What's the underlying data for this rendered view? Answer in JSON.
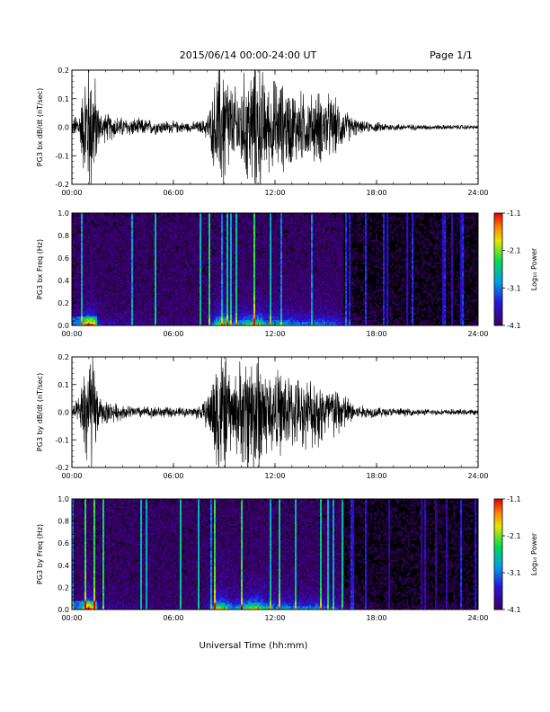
{
  "header": {
    "title": "2015/06/14  00:00-24:00 UT",
    "page": "Page 1/1"
  },
  "xlabel": "Universal Time (hh:mm)",
  "colorbar": {
    "label": "Log₁₀ Power",
    "ticks": [
      "-1.1",
      "-2.1",
      "-3.1",
      "-4.1"
    ],
    "range": [
      -4.1,
      -1.1
    ]
  },
  "chart_data": [
    {
      "type": "line",
      "ylabel": "PG3 bx dB/dt (nT/sec)",
      "x_range_hours": [
        0,
        24
      ],
      "xticks": [
        "00:00",
        "06:00",
        "12:00",
        "18:00",
        "24:00"
      ],
      "ylim": [
        -0.2,
        0.2
      ],
      "yticks": [
        "-0.2",
        "-0.1",
        "0.0",
        "0.1",
        "0.2"
      ],
      "envelope": {
        "hours": [
          0,
          0.5,
          0.8,
          1.0,
          1.3,
          1.6,
          2.0,
          3.0,
          4.0,
          5.0,
          6.0,
          7.0,
          7.8,
          8.2,
          8.6,
          9.0,
          9.5,
          10.0,
          10.5,
          11.0,
          11.5,
          12.0,
          12.5,
          13.0,
          13.5,
          14.0,
          14.5,
          15.0,
          15.5,
          16.0,
          16.5,
          17.0,
          18.0,
          19.0,
          20.0,
          21.0,
          22.0,
          23.0,
          24.0
        ],
        "amplitude": [
          0.03,
          0.08,
          0.25,
          0.3,
          0.25,
          0.07,
          0.06,
          0.04,
          0.035,
          0.03,
          0.025,
          0.02,
          0.03,
          0.09,
          0.25,
          0.3,
          0.15,
          0.2,
          0.25,
          0.3,
          0.17,
          0.2,
          0.18,
          0.16,
          0.15,
          0.13,
          0.15,
          0.14,
          0.12,
          0.08,
          0.05,
          0.025,
          0.02,
          0.015,
          0.012,
          0.01,
          0.01,
          0.01,
          0.008
        ]
      }
    },
    {
      "type": "heatmap",
      "ylabel": "PG3 bx Freq (Hz)",
      "x_range_hours": [
        0,
        24
      ],
      "xticks": [
        "00:00",
        "06:00",
        "12:00",
        "18:00",
        "24:00"
      ],
      "ylim": [
        0.0,
        1.0
      ],
      "yticks": [
        "0.0",
        "0.2",
        "0.4",
        "0.6",
        "0.8",
        "1.0"
      ],
      "zlabel": "Log₁₀ Power",
      "zrange": [
        -4.1,
        -1.1
      ]
    },
    {
      "type": "line",
      "ylabel": "PG3 by dB/dt (nT/sec)",
      "x_range_hours": [
        0,
        24
      ],
      "xticks": [
        "00:00",
        "06:00",
        "12:00",
        "18:00",
        "24:00"
      ],
      "ylim": [
        -0.2,
        0.2
      ],
      "yticks": [
        "-0.2",
        "-0.1",
        "0.0",
        "0.1",
        "0.2"
      ],
      "envelope": {
        "hours": [
          0,
          0.5,
          0.8,
          1.0,
          1.3,
          1.6,
          2.0,
          3.0,
          4.0,
          5.0,
          6.0,
          7.0,
          7.8,
          8.2,
          8.6,
          9.0,
          9.5,
          10.0,
          10.5,
          11.0,
          11.5,
          12.0,
          12.5,
          13.0,
          13.5,
          14.0,
          14.5,
          15.0,
          15.5,
          16.0,
          16.5,
          17.0,
          18.0,
          19.0,
          20.0,
          21.0,
          22.0,
          23.0,
          24.0
        ],
        "amplitude": [
          0.02,
          0.07,
          0.25,
          0.3,
          0.22,
          0.06,
          0.05,
          0.03,
          0.025,
          0.025,
          0.02,
          0.02,
          0.04,
          0.12,
          0.3,
          0.28,
          0.14,
          0.22,
          0.28,
          0.3,
          0.19,
          0.17,
          0.18,
          0.15,
          0.14,
          0.14,
          0.16,
          0.12,
          0.12,
          0.09,
          0.05,
          0.03,
          0.022,
          0.018,
          0.015,
          0.013,
          0.012,
          0.012,
          0.012
        ]
      }
    },
    {
      "type": "heatmap",
      "ylabel": "PG3 by Freq (Hz)",
      "x_range_hours": [
        0,
        24
      ],
      "xticks": [
        "00:00",
        "06:00",
        "12:00",
        "18:00",
        "24:00"
      ],
      "ylim": [
        0.0,
        1.0
      ],
      "yticks": [
        "0.0",
        "0.2",
        "0.4",
        "0.6",
        "0.8",
        "1.0"
      ],
      "zlabel": "Log₁₀ Power",
      "zrange": [
        -4.1,
        -1.1
      ]
    }
  ]
}
